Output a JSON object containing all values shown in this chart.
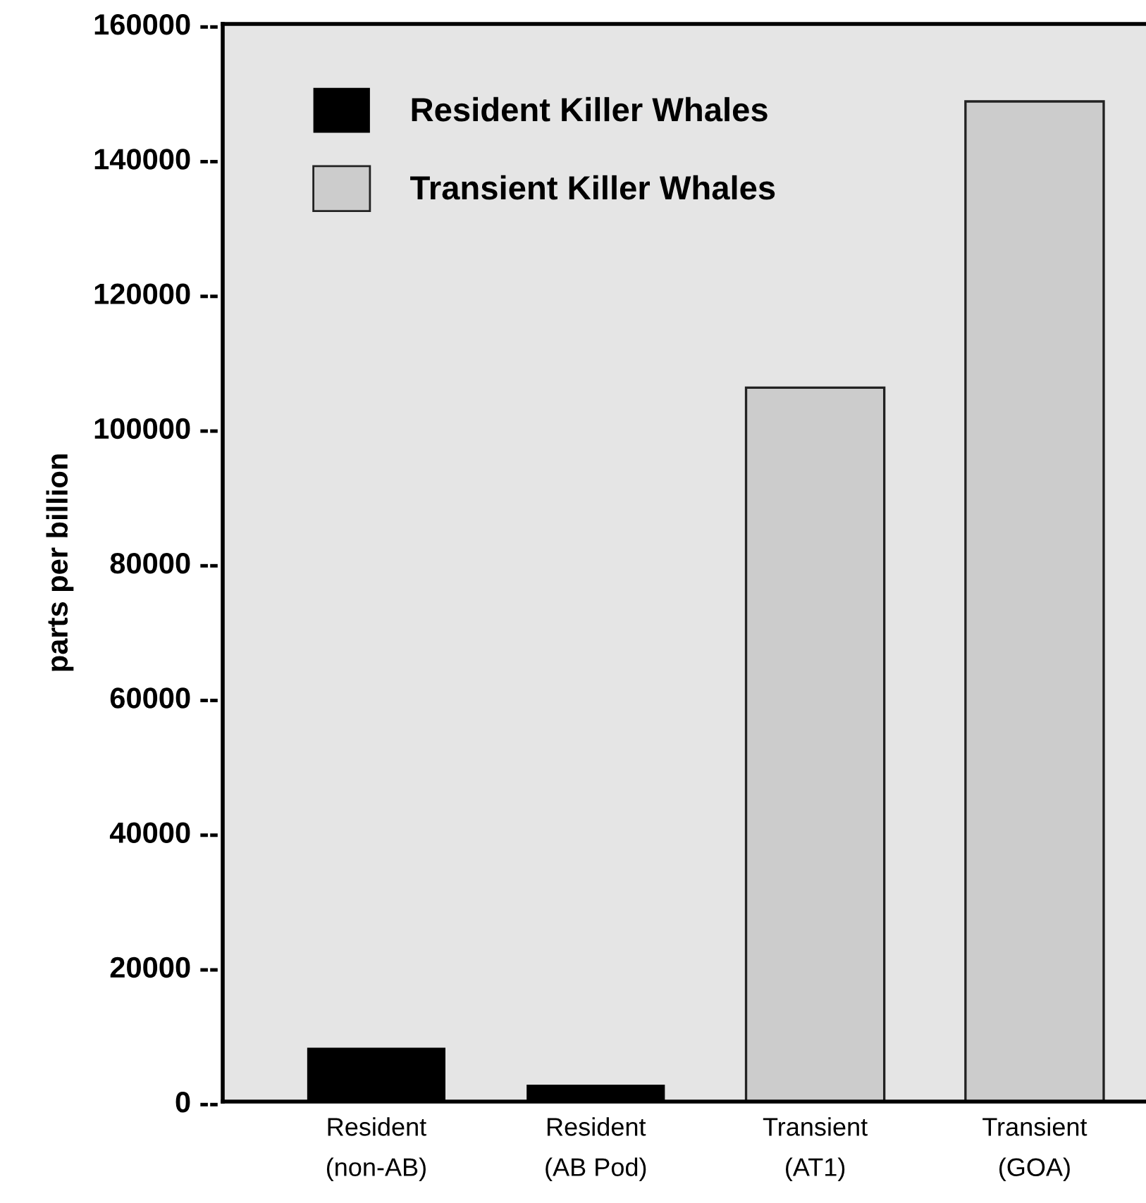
{
  "chart_data": {
    "type": "bar",
    "ylabel": "parts per billion",
    "categories": [
      "Resident\n(non-AB)",
      "Resident\n(AB Pod)",
      "Transient\n(AT1)",
      "Transient\n(GOA)"
    ],
    "series": [
      {
        "name": "Resident Killer Whales",
        "color": "#000000",
        "values": [
          8000,
          2500,
          null,
          null
        ]
      },
      {
        "name": "Transient Killer Whales",
        "color": "#cccccc",
        "values": [
          null,
          null,
          106000,
          148500
        ]
      }
    ],
    "ylim": [
      0,
      160000
    ],
    "yticks": [
      {
        "value": 0,
        "label": "0 --"
      },
      {
        "value": 20000,
        "label": "20000 --"
      },
      {
        "value": 40000,
        "label": "40000 --"
      },
      {
        "value": 60000,
        "label": "60000 --"
      },
      {
        "value": 80000,
        "label": "80000 --"
      },
      {
        "value": 100000,
        "label": "100000 --"
      },
      {
        "value": 120000,
        "label": "120000 --"
      },
      {
        "value": 140000,
        "label": "140000 --"
      },
      {
        "value": 160000,
        "label": "160000 --"
      }
    ],
    "grid": false,
    "legend": "top left"
  }
}
